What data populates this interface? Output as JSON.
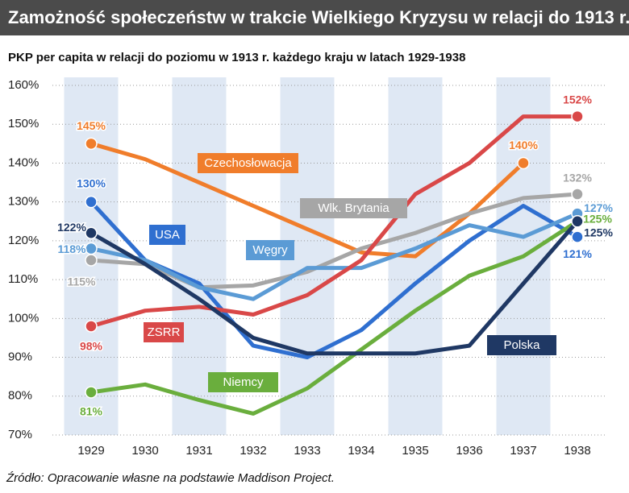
{
  "chart_data": {
    "type": "line",
    "title": "Zamożność społeczeństw w trakcie Wielkiego Kryzysu w relacji do 1913 r.",
    "subtitle": "PKP per capita w relacji do poziomu w 1913 r. każdego kraju w latach 1929-1938",
    "source": "Źródło: Opracowanie własne na podstawie Maddison Project.",
    "categories": [
      "1929",
      "1930",
      "1931",
      "1932",
      "1933",
      "1934",
      "1935",
      "1936",
      "1937",
      "1938"
    ],
    "ylim": [
      70,
      160
    ],
    "yticks": [
      {
        "value": 70,
        "label": "70%"
      },
      {
        "value": 80,
        "label": "80%"
      },
      {
        "value": 90,
        "label": "90%"
      },
      {
        "value": 100,
        "label": "100%"
      },
      {
        "value": 110,
        "label": "110%"
      },
      {
        "value": 120,
        "label": "120%"
      },
      {
        "value": 130,
        "label": "130%"
      },
      {
        "value": 140,
        "label": "140%"
      },
      {
        "value": 150,
        "label": "150%"
      },
      {
        "value": 160,
        "label": "160%"
      }
    ],
    "grid": true,
    "series": [
      {
        "name": "Czechosłowacja",
        "color": "#f07d2b",
        "values": [
          145,
          141,
          135,
          129,
          123,
          117,
          116,
          127,
          140,
          null
        ],
        "value_labels": [
          "145%",
          null,
          null,
          null,
          null,
          null,
          null,
          null,
          "140%",
          null
        ]
      },
      {
        "name": "Wlk. Brytania",
        "color": "#a6a6a6",
        "values": [
          115,
          114,
          108,
          108.5,
          112,
          118,
          122,
          127,
          131,
          132
        ],
        "value_labels": [
          "115%",
          null,
          null,
          null,
          null,
          null,
          null,
          null,
          null,
          "132%"
        ]
      },
      {
        "name": "USA",
        "color": "#2f6fd0",
        "values": [
          130,
          115,
          109,
          93,
          90,
          97,
          109,
          120,
          129,
          121
        ],
        "value_labels": [
          "130%",
          null,
          null,
          null,
          null,
          null,
          null,
          null,
          null,
          "121%"
        ]
      },
      {
        "name": "Węgry",
        "color": "#5b9bd5",
        "values": [
          118,
          115,
          108,
          105,
          113,
          113,
          118,
          124,
          121,
          127
        ],
        "value_labels": [
          "118%",
          null,
          null,
          null,
          null,
          null,
          null,
          null,
          null,
          "127%"
        ]
      },
      {
        "name": "ZSRR",
        "color": "#d94848",
        "values": [
          98,
          102,
          103,
          101,
          106,
          115,
          132,
          140,
          152,
          152
        ],
        "value_labels": [
          "98%",
          null,
          null,
          null,
          null,
          null,
          null,
          null,
          null,
          "152%"
        ]
      },
      {
        "name": "Niemcy",
        "color": "#6aae3d",
        "values": [
          81,
          83,
          79,
          75.5,
          82,
          92,
          102,
          111,
          116,
          125
        ],
        "value_labels": [
          "81%",
          null,
          null,
          null,
          null,
          null,
          null,
          null,
          null,
          "125%"
        ]
      },
      {
        "name": "Polska",
        "color": "#1f3864",
        "values": [
          122,
          114,
          105,
          95,
          91,
          91,
          91,
          93,
          109,
          125
        ],
        "value_labels": [
          "122%",
          null,
          null,
          null,
          null,
          null,
          null,
          null,
          null,
          "125%"
        ]
      }
    ]
  }
}
